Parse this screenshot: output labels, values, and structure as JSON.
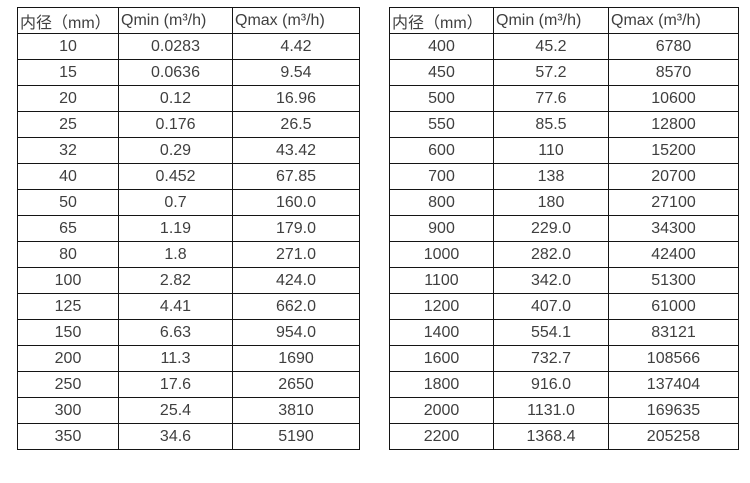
{
  "colors": {
    "background": "#ffffff",
    "border": "#141414",
    "text": "#3f3f3f"
  },
  "chart_data": [
    {
      "type": "table",
      "title": "",
      "columns": [
        "内径（mm）",
        "Qmin (m³/h)",
        "Qmax (m³/h)"
      ],
      "rows": [
        [
          "10",
          "0.0283",
          "4.42"
        ],
        [
          "15",
          "0.0636",
          "9.54"
        ],
        [
          "20",
          "0.12",
          "16.96"
        ],
        [
          "25",
          "0.176",
          "26.5"
        ],
        [
          "32",
          "0.29",
          "43.42"
        ],
        [
          "40",
          "0.452",
          "67.85"
        ],
        [
          "50",
          "0.7",
          "160.0"
        ],
        [
          "65",
          "1.19",
          "179.0"
        ],
        [
          "80",
          "1.8",
          "271.0"
        ],
        [
          "100",
          "2.82",
          "424.0"
        ],
        [
          "125",
          "4.41",
          "662.0"
        ],
        [
          "150",
          "6.63",
          "954.0"
        ],
        [
          "200",
          "11.3",
          "1690"
        ],
        [
          "250",
          "17.6",
          "2650"
        ],
        [
          "300",
          "25.4",
          "3810"
        ],
        [
          "350",
          "34.6",
          "5190"
        ]
      ]
    },
    {
      "type": "table",
      "title": "",
      "columns": [
        "内径（mm）",
        "Qmin (m³/h)",
        "Qmax (m³/h)"
      ],
      "rows": [
        [
          "400",
          "45.2",
          "6780"
        ],
        [
          "450",
          "57.2",
          "8570"
        ],
        [
          "500",
          "77.6",
          "10600"
        ],
        [
          "550",
          "85.5",
          "12800"
        ],
        [
          "600",
          "110",
          "15200"
        ],
        [
          "700",
          "138",
          "20700"
        ],
        [
          "800",
          "180",
          "27100"
        ],
        [
          "900",
          "229.0",
          "34300"
        ],
        [
          "1000",
          "282.0",
          "42400"
        ],
        [
          "1100",
          "342.0",
          "51300"
        ],
        [
          "1200",
          "407.0",
          "61000"
        ],
        [
          "1400",
          "554.1",
          "83121"
        ],
        [
          "1600",
          "732.7",
          "108566"
        ],
        [
          "1800",
          "916.0",
          "137404"
        ],
        [
          "2000",
          "1131.0",
          "169635"
        ],
        [
          "2200",
          "1368.4",
          "205258"
        ]
      ]
    }
  ]
}
